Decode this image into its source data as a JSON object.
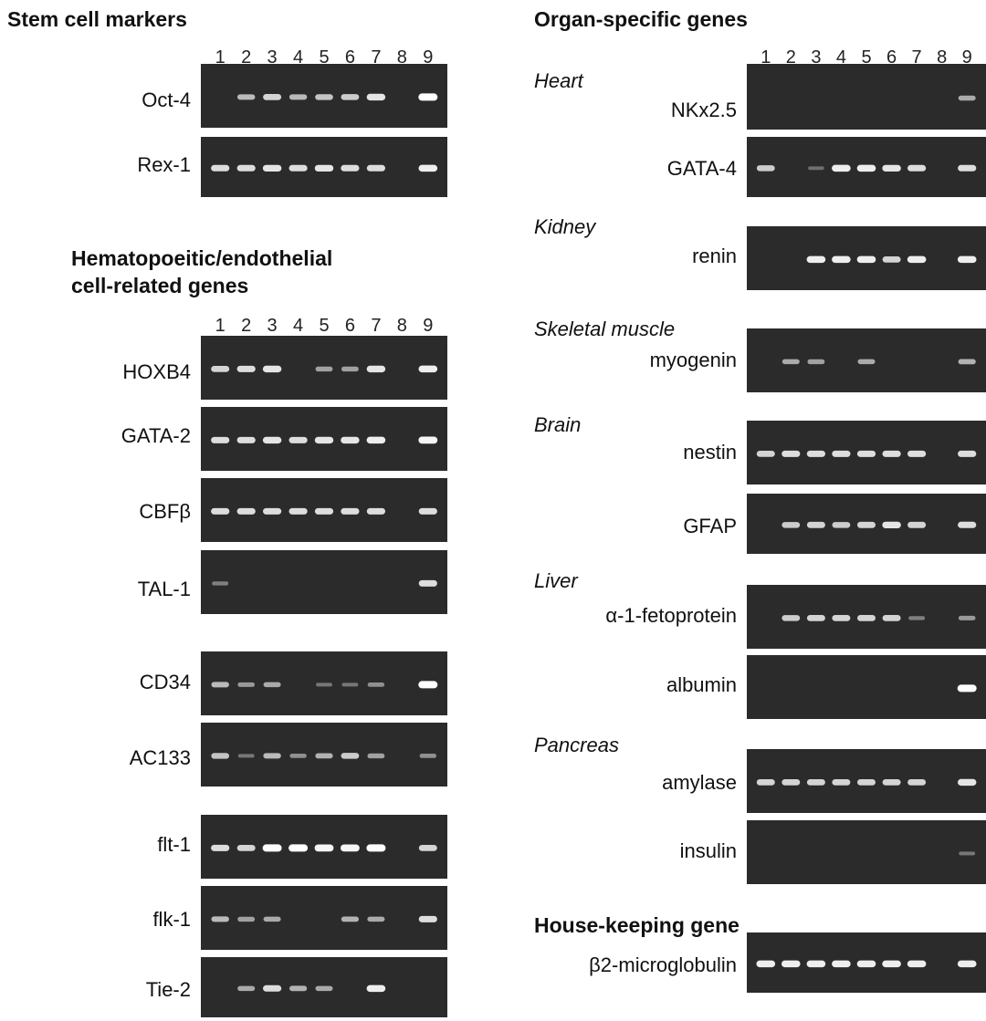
{
  "sections": {
    "stem": {
      "title": "Stem cell markers"
    },
    "hemato": {
      "title_line1": "Hematopoeitic/endothelial",
      "title_line2": "cell-related genes"
    },
    "organ": {
      "title": "Organ-specific genes"
    },
    "house": {
      "title": "House-keeping gene"
    }
  },
  "lanes": [
    "1",
    "2",
    "3",
    "4",
    "5",
    "6",
    "7",
    "8",
    "9"
  ],
  "organs": {
    "heart": "Heart",
    "kidney": "Kidney",
    "skeletal": "Skeletal muscle",
    "brain": "Brain",
    "liver": "Liver",
    "pancreas": "Pancreas"
  },
  "genes": {
    "oct4": {
      "label": "Oct-4",
      "bands": [
        0,
        0.6,
        0.75,
        0.6,
        0.65,
        0.7,
        0.85,
        0,
        1
      ]
    },
    "rex1": {
      "label": "Rex-1",
      "bands": [
        0.8,
        0.8,
        0.85,
        0.8,
        0.85,
        0.8,
        0.8,
        0,
        0.9
      ]
    },
    "hoxb4": {
      "label": "HOXB4",
      "bands": [
        0.75,
        0.8,
        0.85,
        0,
        0.45,
        0.45,
        0.85,
        0,
        0.9
      ]
    },
    "gata2": {
      "label": "GATA-2",
      "bands": [
        0.8,
        0.8,
        0.85,
        0.8,
        0.85,
        0.85,
        0.9,
        0,
        0.95
      ]
    },
    "cbfb": {
      "label": "CBFβ",
      "bands": [
        0.8,
        0.8,
        0.8,
        0.8,
        0.8,
        0.8,
        0.8,
        0,
        0.8
      ]
    },
    "tal1": {
      "label": "TAL-1",
      "bands": [
        0.25,
        0,
        0,
        0,
        0,
        0,
        0,
        0,
        0.8
      ]
    },
    "cd34": {
      "label": "CD34",
      "bands": [
        0.6,
        0.4,
        0.5,
        0,
        0.2,
        0.2,
        0.35,
        0,
        1
      ]
    },
    "ac133": {
      "label": "AC133",
      "bands": [
        0.65,
        0.2,
        0.6,
        0.35,
        0.55,
        0.7,
        0.45,
        0,
        0.35
      ]
    },
    "flt1": {
      "label": "flt-1",
      "bands": [
        0.8,
        0.75,
        1,
        1,
        0.95,
        0.95,
        1,
        0,
        0.75
      ]
    },
    "flk1": {
      "label": "flk-1",
      "bands": [
        0.6,
        0.45,
        0.5,
        0,
        0,
        0.55,
        0.5,
        0,
        0.8
      ]
    },
    "tie2": {
      "label": "Tie-2",
      "bands": [
        0,
        0.5,
        0.8,
        0.55,
        0.5,
        0,
        0.9,
        0,
        0
      ]
    },
    "nkx25": {
      "label": "NKx2.5",
      "bands": [
        0,
        0,
        0,
        0,
        0,
        0,
        0,
        0,
        0.5
      ]
    },
    "gata4": {
      "label": "GATA-4",
      "bands": [
        0.7,
        0,
        0.15,
        0.9,
        0.9,
        0.85,
        0.8,
        0,
        0.8
      ]
    },
    "renin": {
      "label": "renin",
      "bands": [
        0,
        0,
        0.9,
        0.9,
        0.9,
        0.75,
        0.9,
        0,
        0.9
      ]
    },
    "myogenin": {
      "label": "myogenin",
      "bands": [
        0,
        0.5,
        0.45,
        0,
        0.5,
        0,
        0,
        0,
        0.55
      ]
    },
    "nestin": {
      "label": "nestin",
      "bands": [
        0.75,
        0.8,
        0.8,
        0.8,
        0.8,
        0.8,
        0.8,
        0,
        0.8
      ]
    },
    "gfap": {
      "label": "GFAP",
      "bands": [
        0,
        0.7,
        0.75,
        0.7,
        0.75,
        0.85,
        0.75,
        0,
        0.8
      ]
    },
    "afp": {
      "label": "α-1-fetoprotein",
      "bands": [
        0,
        0.7,
        0.75,
        0.75,
        0.75,
        0.75,
        0.25,
        0,
        0.4
      ]
    },
    "albumin": {
      "label": "albumin",
      "bands": [
        0,
        0,
        0,
        0,
        0,
        0,
        0,
        0,
        1
      ]
    },
    "amylase": {
      "label": "amylase",
      "bands": [
        0.75,
        0.75,
        0.75,
        0.75,
        0.75,
        0.75,
        0.75,
        0,
        0.85
      ]
    },
    "insulin": {
      "label": "insulin",
      "bands": [
        0,
        0,
        0,
        0,
        0,
        0,
        0,
        0,
        0.2
      ]
    },
    "b2m": {
      "label": "β2-microglobulin",
      "bands": [
        0.9,
        0.9,
        0.9,
        0.9,
        0.9,
        0.9,
        0.9,
        0,
        0.9
      ]
    }
  }
}
